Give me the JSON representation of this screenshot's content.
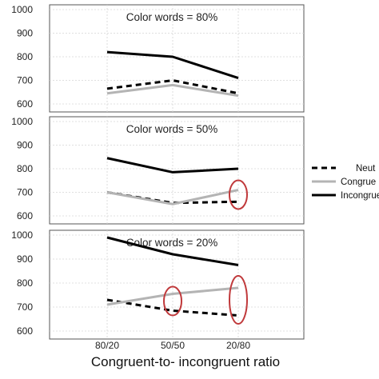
{
  "chart_data": {
    "type": "line",
    "xlabel": "Congruent-to- incongruent ratio",
    "categories": [
      "80/20",
      "50/50",
      "20/80"
    ],
    "ylim": [
      600,
      1000
    ],
    "yticks": [
      600,
      700,
      800,
      900,
      1000
    ],
    "grid": true,
    "legend_position": "right",
    "legend_labels": [
      "Neut",
      "Congrue",
      "Incongrue"
    ],
    "series_styles": [
      {
        "dash": "dashed",
        "color": "#000000"
      },
      {
        "dash": "solid",
        "color": "#b4b4b4"
      },
      {
        "dash": "solid",
        "color": "#000000"
      }
    ],
    "panels": [
      {
        "title": "Color words = 80%",
        "series": [
          {
            "values": [
              665,
              700,
              645
            ]
          },
          {
            "values": [
              645,
              680,
              635
            ]
          },
          {
            "values": [
              820,
              800,
              710
            ]
          }
        ],
        "highlights": []
      },
      {
        "title": "Color words = 50%",
        "series": [
          {
            "values": [
              700,
              655,
              660
            ]
          },
          {
            "values": [
              700,
              650,
              710
            ]
          },
          {
            "values": [
              845,
              785,
              800
            ]
          }
        ],
        "highlights": [
          {
            "category": "20/80",
            "value": 690
          }
        ]
      },
      {
        "title": "Color words = 20%",
        "series": [
          {
            "values": [
              730,
              685,
              665
            ]
          },
          {
            "values": [
              710,
              755,
              780
            ]
          },
          {
            "values": [
              990,
              920,
              875
            ]
          }
        ],
        "highlights": [
          {
            "category": "50/50",
            "value": 725
          },
          {
            "category": "20/80",
            "value": 730
          }
        ]
      }
    ]
  }
}
